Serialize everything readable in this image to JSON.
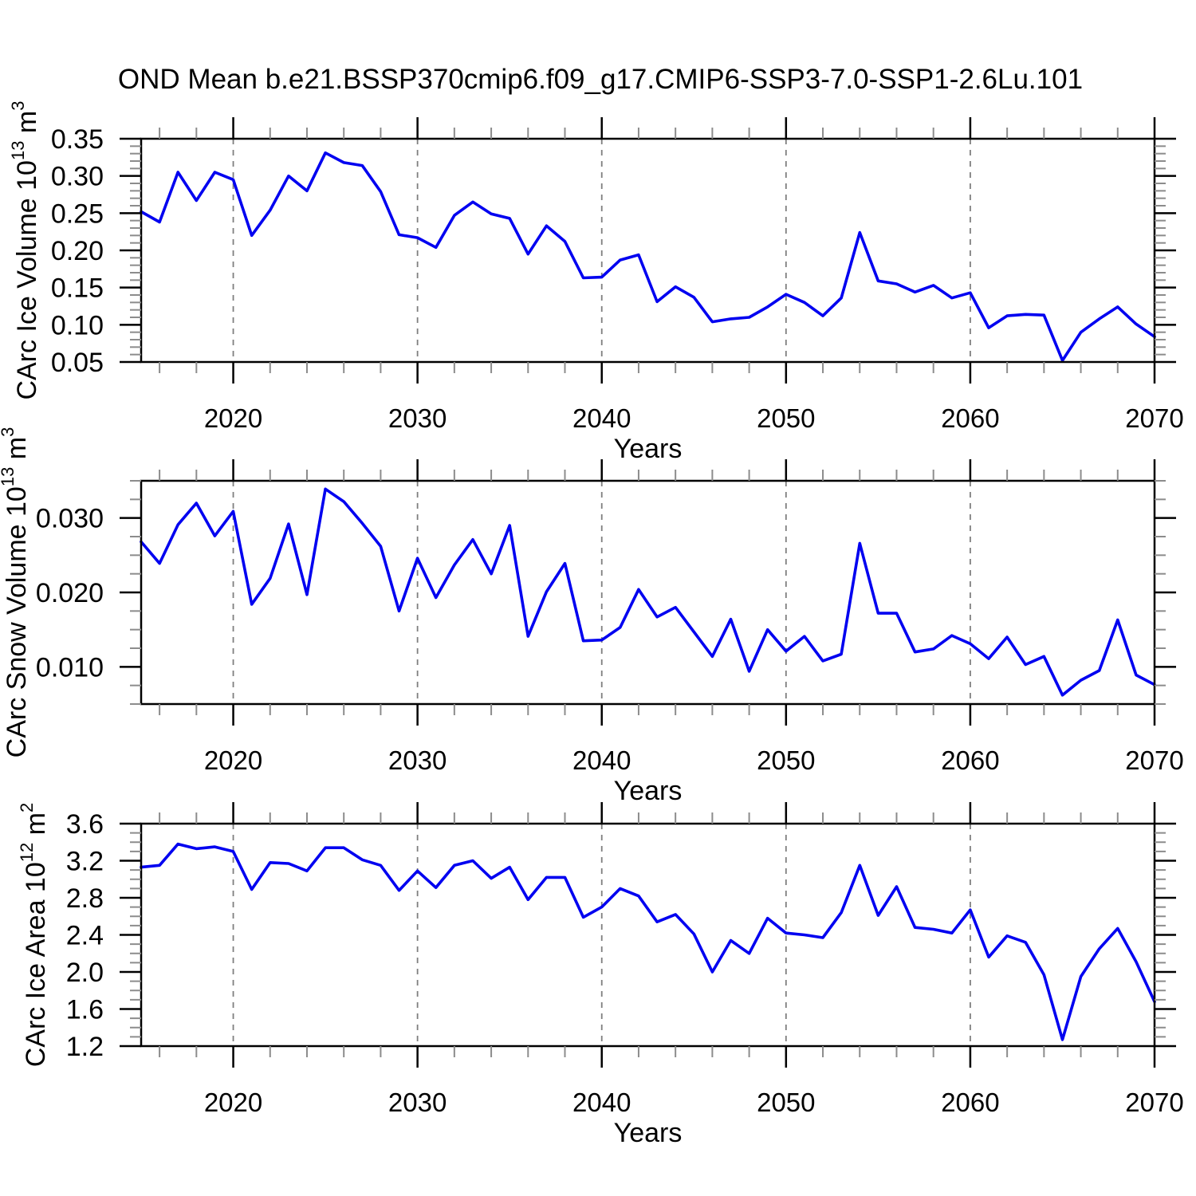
{
  "title": "OND Mean b.e21.BSSP370cmip6.f09_g17.CMIP6-SSP3-7.0-SSP1-2.6Lu.101",
  "style": {
    "background": "#ffffff",
    "line_color": "#0000f0",
    "axis_color": "#000000",
    "minor_tick_color": "#8c8c8c",
    "grid_color": "#7f7f7f",
    "text_color": "#000000"
  },
  "chart_data": {
    "type": "line",
    "x_label": "Years",
    "legend": "none",
    "grid": "vertical-dashed-at-decades",
    "years": [
      2015,
      2016,
      2017,
      2018,
      2019,
      2020,
      2021,
      2022,
      2023,
      2024,
      2025,
      2026,
      2027,
      2028,
      2029,
      2030,
      2031,
      2032,
      2033,
      2034,
      2035,
      2036,
      2037,
      2038,
      2039,
      2040,
      2041,
      2042,
      2043,
      2044,
      2045,
      2046,
      2047,
      2048,
      2049,
      2050,
      2051,
      2052,
      2053,
      2054,
      2055,
      2056,
      2057,
      2058,
      2059,
      2060,
      2061,
      2062,
      2063,
      2064,
      2065,
      2066,
      2067,
      2068,
      2069,
      2070
    ],
    "x_axis": {
      "range": [
        2015,
        2070
      ],
      "major_ticks": [
        2020,
        2030,
        2040,
        2050,
        2060,
        2070
      ],
      "tick_labels": [
        "2020",
        "2030",
        "2040",
        "2050",
        "2060",
        "2070"
      ],
      "minor_step": 2,
      "grid_years": [
        2020,
        2030,
        2040,
        2050,
        2060
      ]
    },
    "panels": [
      {
        "name": "ice-volume",
        "ylabel": "CArc Ice Volume 10^13 m^3",
        "ylim": [
          0.05,
          0.35
        ],
        "y_major_ticks": [
          0.05,
          0.1,
          0.15,
          0.2,
          0.25,
          0.3,
          0.35
        ],
        "y_tick_labels": [
          "0.05",
          "0.10",
          "0.15",
          "0.20",
          "0.25",
          "0.30",
          "0.35"
        ],
        "y_minor_step": 0.01,
        "values": [
          0.252,
          0.238,
          0.305,
          0.267,
          0.305,
          0.295,
          0.22,
          0.254,
          0.3,
          0.28,
          0.331,
          0.318,
          0.314,
          0.279,
          0.221,
          0.217,
          0.204,
          0.247,
          0.265,
          0.249,
          0.243,
          0.195,
          0.233,
          0.212,
          0.163,
          0.164,
          0.187,
          0.194,
          0.131,
          0.151,
          0.137,
          0.104,
          0.108,
          0.11,
          0.124,
          0.141,
          0.13,
          0.112,
          0.136,
          0.224,
          0.159,
          0.155,
          0.144,
          0.153,
          0.136,
          0.143,
          0.096,
          0.112,
          0.114,
          0.113,
          0.052,
          0.09,
          0.108,
          0.124,
          0.101,
          0.084
        ]
      },
      {
        "name": "snow-volume",
        "ylabel": "CArc Snow Volume 10^13 m^3",
        "ylim": [
          0.005,
          0.035
        ],
        "y_major_ticks": [
          0.01,
          0.02,
          0.03
        ],
        "y_tick_labels": [
          "0.010",
          "0.020",
          "0.030"
        ],
        "y_minor_step": 0.0025,
        "values": [
          0.0268,
          0.0239,
          0.0291,
          0.032,
          0.0276,
          0.0309,
          0.0184,
          0.0219,
          0.0292,
          0.0197,
          0.0339,
          0.0322,
          0.0293,
          0.0262,
          0.0175,
          0.0246,
          0.0193,
          0.0237,
          0.0271,
          0.0225,
          0.029,
          0.0141,
          0.0201,
          0.0239,
          0.0135,
          0.0136,
          0.0153,
          0.0204,
          0.0167,
          0.018,
          0.0147,
          0.0114,
          0.0164,
          0.0094,
          0.015,
          0.0121,
          0.0141,
          0.0108,
          0.0117,
          0.0266,
          0.0172,
          0.0172,
          0.012,
          0.0124,
          0.0142,
          0.0131,
          0.0111,
          0.014,
          0.0103,
          0.0114,
          0.0062,
          0.0082,
          0.0095,
          0.0163,
          0.0089,
          0.0076
        ]
      },
      {
        "name": "ice-area",
        "ylabel": "CArc Ice Area 10^12 m^2",
        "ylim": [
          1.2,
          3.6
        ],
        "y_major_ticks": [
          1.2,
          1.6,
          2.0,
          2.4,
          2.8,
          3.2,
          3.6
        ],
        "y_tick_labels": [
          "1.2",
          "1.6",
          "2.0",
          "2.4",
          "2.8",
          "3.2",
          "3.6"
        ],
        "y_minor_step": 0.1,
        "values": [
          3.13,
          3.15,
          3.38,
          3.33,
          3.35,
          3.3,
          2.89,
          3.18,
          3.17,
          3.09,
          3.34,
          3.34,
          3.21,
          3.15,
          2.88,
          3.09,
          2.91,
          3.15,
          3.2,
          3.01,
          3.13,
          2.78,
          3.02,
          3.02,
          2.59,
          2.7,
          2.9,
          2.82,
          2.54,
          2.62,
          2.41,
          2.0,
          2.34,
          2.2,
          2.58,
          2.42,
          2.4,
          2.37,
          2.64,
          3.15,
          2.61,
          2.92,
          2.48,
          2.46,
          2.42,
          2.67,
          2.16,
          2.39,
          2.32,
          1.97,
          1.27,
          1.95,
          2.25,
          2.47,
          2.11,
          1.68
        ]
      }
    ]
  }
}
